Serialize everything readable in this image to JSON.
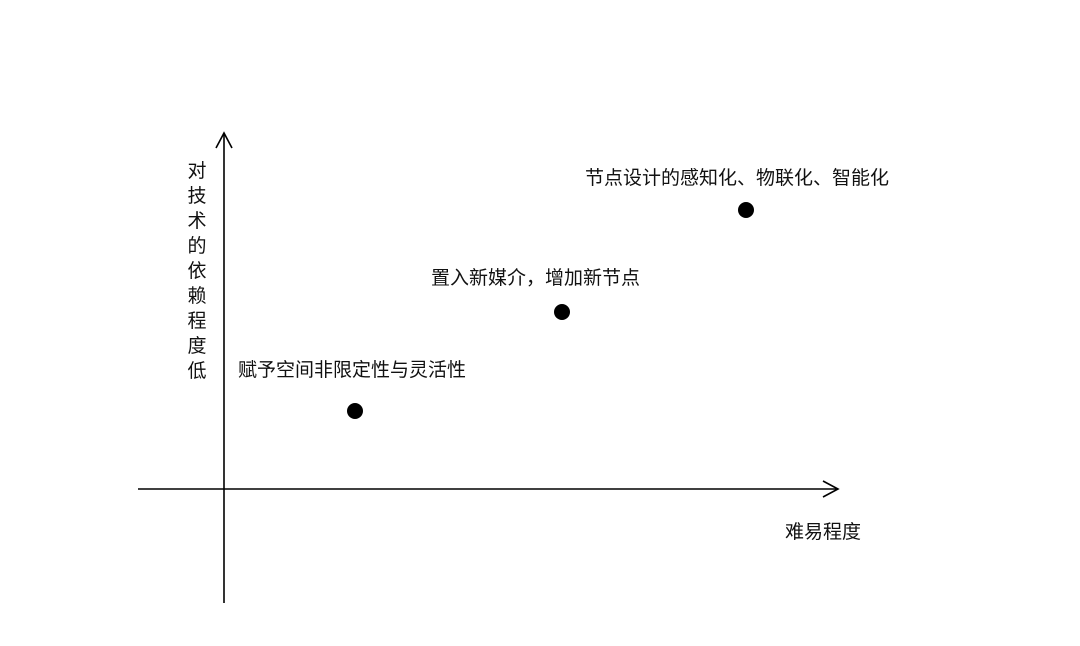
{
  "diagram": {
    "y_axis_label": "对技术的依赖程度低",
    "x_axis_label": "难易程度",
    "points": [
      {
        "label": "赋予空间非限定性与灵活性"
      },
      {
        "label": "置入新媒介，增加新节点"
      },
      {
        "label": "节点设计的感知化、物联化、智能化"
      }
    ],
    "colors": {
      "ink": "#000000",
      "background": "#ffffff"
    }
  }
}
